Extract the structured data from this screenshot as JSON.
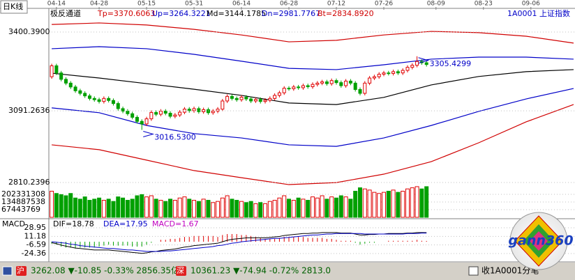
{
  "header": {
    "period": "日K线",
    "indicator": "极反通道",
    "symbol": "1A0001",
    "name": "上证指数"
  },
  "chart_data": [
    {
      "type": "candlestick",
      "xlim": [
        -0.6,
        110.3
      ],
      "xticks": [
        {
          "value": 1,
          "label": "04-14"
        },
        {
          "value": 10,
          "label": "04-28"
        },
        {
          "value": 20,
          "label": "05-15"
        },
        {
          "value": 30,
          "label": "05-31"
        },
        {
          "value": 40,
          "label": "06-14"
        },
        {
          "value": 50,
          "label": "06-28"
        },
        {
          "value": 60,
          "label": "07-12"
        },
        {
          "value": 70,
          "label": "07-26"
        },
        {
          "value": 81,
          "label": "08-09"
        },
        {
          "value": 91,
          "label": "08-23"
        },
        {
          "value": 101,
          "label": "09-06"
        }
      ],
      "ylim": [
        2793.9,
        3487.8
      ],
      "yticks": [
        {
          "value": 3400.39,
          "label": "3400.3900"
        },
        3091.2636,
        2810.2396
      ],
      "up_color": "#e00000",
      "down_color": "#00a000",
      "open": [
        3225,
        3268,
        3240,
        3215,
        3200,
        3185,
        3170,
        3160,
        3150,
        3140,
        3135,
        3128,
        3140,
        3132,
        3120,
        3100,
        3090,
        3080,
        3066,
        3050,
        3040,
        3060,
        3085,
        3078,
        3090,
        3082,
        3070,
        3075,
        3086,
        3098,
        3092,
        3100,
        3088,
        3096,
        3084,
        3090,
        3098,
        3130,
        3148,
        3140,
        3135,
        3145,
        3138,
        3130,
        3136,
        3128,
        3133,
        3140,
        3152,
        3162,
        3180,
        3178,
        3185,
        3182,
        3190,
        3186,
        3195,
        3200,
        3205,
        3198,
        3210,
        3202,
        3190,
        3208,
        3200,
        3175,
        3160,
        3200,
        3220,
        3225,
        3235,
        3240,
        3238,
        3245,
        3240,
        3250,
        3262,
        3270,
        3285,
        3280
      ],
      "high": [
        3276,
        3276,
        3248,
        3223,
        3208,
        3193,
        3178,
        3168,
        3158,
        3148,
        3143,
        3148,
        3148,
        3140,
        3128,
        3108,
        3098,
        3088,
        3074,
        3058,
        3068,
        3093,
        3093,
        3098,
        3098,
        3090,
        3083,
        3094,
        3106,
        3106,
        3108,
        3108,
        3104,
        3104,
        3098,
        3106,
        3138,
        3156,
        3156,
        3148,
        3153,
        3153,
        3146,
        3144,
        3144,
        3141,
        3148,
        3160,
        3170,
        3188,
        3188,
        3193,
        3193,
        3198,
        3198,
        3203,
        3208,
        3213,
        3213,
        3218,
        3218,
        3210,
        3216,
        3216,
        3208,
        3183,
        3208,
        3228,
        3233,
        3243,
        3248,
        3248,
        3253,
        3253,
        3258,
        3270,
        3278,
        3305.4299,
        3293,
        3288
      ],
      "low": [
        3217,
        3232,
        3207,
        3192,
        3177,
        3162,
        3152,
        3142,
        3132,
        3127,
        3120,
        3120,
        3124,
        3112,
        3092,
        3082,
        3072,
        3058,
        3042,
        3016.53,
        3032,
        3052,
        3070,
        3070,
        3074,
        3062,
        3062,
        3067,
        3078,
        3084,
        3084,
        3080,
        3080,
        3076,
        3076,
        3082,
        3090,
        3122,
        3132,
        3127,
        3127,
        3130,
        3122,
        3122,
        3120,
        3120,
        3125,
        3132,
        3144,
        3154,
        3170,
        3170,
        3174,
        3174,
        3178,
        3178,
        3187,
        3192,
        3190,
        3190,
        3194,
        3182,
        3182,
        3192,
        3167,
        3152,
        3152,
        3192,
        3212,
        3217,
        3227,
        3230,
        3230,
        3232,
        3232,
        3242,
        3254,
        3262,
        3272,
        3265
      ],
      "close": [
        3268,
        3240,
        3215,
        3200,
        3185,
        3170,
        3160,
        3150,
        3140,
        3135,
        3128,
        3140,
        3132,
        3120,
        3100,
        3090,
        3080,
        3066,
        3050,
        3040,
        3060,
        3085,
        3078,
        3090,
        3082,
        3070,
        3075,
        3086,
        3098,
        3092,
        3100,
        3088,
        3096,
        3084,
        3090,
        3098,
        3130,
        3148,
        3140,
        3135,
        3145,
        3138,
        3130,
        3136,
        3128,
        3133,
        3140,
        3152,
        3162,
        3180,
        3178,
        3185,
        3182,
        3190,
        3186,
        3195,
        3200,
        3205,
        3198,
        3210,
        3202,
        3190,
        3208,
        3200,
        3175,
        3160,
        3200,
        3220,
        3225,
        3235,
        3240,
        3238,
        3245,
        3240,
        3250,
        3262,
        3270,
        3285,
        3280,
        3273
      ],
      "channel_x": [
        0,
        10,
        20,
        30,
        40,
        50,
        60,
        70,
        80,
        90,
        100,
        110
      ],
      "series": [
        {
          "name": "Tp=3370.6063",
          "color": "#d00000",
          "values": [
            3430,
            3436,
            3428,
            3411,
            3389,
            3362,
            3368,
            3389,
            3403,
            3398,
            3384,
            3357
          ]
        },
        {
          "name": "Up=3264.3221",
          "color": "#0000c8",
          "values": [
            3335,
            3343,
            3335,
            3313,
            3286,
            3258,
            3253,
            3272,
            3294,
            3302,
            3302,
            3294
          ]
        },
        {
          "name": "Md=3144.1785",
          "color": "#000000",
          "values": [
            3239,
            3220,
            3198,
            3176,
            3152,
            3122,
            3116,
            3144,
            3193,
            3226,
            3245,
            3253
          ]
        },
        {
          "name": "Dn=2981.7767",
          "color": "#0000c8",
          "values": [
            3103,
            3084,
            3034,
            3002,
            2985,
            2958,
            2952,
            2985,
            3034,
            3089,
            3138,
            3179
          ]
        },
        {
          "name": "Bt=2834.8920",
          "color": "#d00000",
          "values": [
            2958,
            2939,
            2898,
            2857,
            2829,
            2802,
            2810,
            2843,
            2892,
            2966,
            3048,
            3116
          ]
        }
      ],
      "annotations": [
        {
          "label": "3305.4299",
          "x": 77,
          "value": 3305.4299,
          "color": "#0000c8"
        },
        {
          "label": "3016.5300",
          "x": 19,
          "value": 3016.53,
          "color": "#0000c8"
        }
      ]
    },
    {
      "type": "volume",
      "ylim": [
        0,
        269775077
      ],
      "yticks": [
        67443769,
        134887538,
        202331308
      ],
      "values": [
        230000000.0,
        210000000.0,
        200000000.0,
        190000000.0,
        210000000.0,
        170000000.0,
        160000000.0,
        180000000.0,
        150000000.0,
        160000000.0,
        170000000.0,
        150000000.0,
        160000000.0,
        140000000.0,
        180000000.0,
        170000000.0,
        150000000.0,
        160000000.0,
        190000000.0,
        200000000.0,
        180000000.0,
        190000000.0,
        160000000.0,
        150000000.0,
        140000000.0,
        160000000.0,
        150000000.0,
        170000000.0,
        180000000.0,
        160000000.0,
        150000000.0,
        140000000.0,
        160000000.0,
        150000000.0,
        130000000.0,
        140000000.0,
        170000000.0,
        190000000.0,
        160000000.0,
        150000000.0,
        140000000.0,
        130000000.0,
        140000000.0,
        120000000.0,
        130000000.0,
        120000000.0,
        140000000.0,
        150000000.0,
        170000000.0,
        190000000.0,
        160000000.0,
        150000000.0,
        170000000.0,
        160000000.0,
        150000000.0,
        180000000.0,
        170000000.0,
        190000000.0,
        160000000.0,
        180000000.0,
        170000000.0,
        190000000.0,
        180000000.0,
        160000000.0,
        230000000.0,
        260000000.0,
        250000000.0,
        240000000.0,
        220000000.0,
        210000000.0,
        220000000.0,
        230000000.0,
        240000000.0,
        220000000.0,
        230000000.0,
        250000000.0,
        260000000.0,
        270000000.0,
        250000000.0,
        270000000.0
      ]
    },
    {
      "type": "macd",
      "title": "MACD",
      "ylim": [
        -35.89,
        39.04
      ],
      "yticks": [
        28.95,
        11.18,
        -6.59,
        -24.36
      ],
      "series": [
        {
          "name": "DIF=18.78",
          "color": "#000000",
          "values": [
            -2,
            -4,
            -7,
            -9,
            -11,
            -13,
            -14,
            -15,
            -16,
            -17,
            -17,
            -17,
            -17,
            -18,
            -19,
            -20,
            -21,
            -22,
            -23,
            -24,
            -23,
            -21,
            -20,
            -18,
            -17,
            -16,
            -15,
            -13,
            -11,
            -10,
            -8,
            -7,
            -6,
            -5,
            -4,
            -3,
            0,
            3,
            5,
            6,
            7,
            8,
            8,
            8,
            8,
            8,
            9,
            10,
            11,
            13,
            14,
            15,
            16,
            17,
            17,
            18,
            18,
            19,
            19,
            19,
            19,
            18,
            18,
            18,
            16,
            14,
            14,
            15,
            15,
            16,
            16,
            17,
            17,
            17,
            17,
            18,
            18,
            19,
            19,
            18.78
          ]
        },
        {
          "name": "DEA=17.95",
          "color": "#0000c8",
          "values": [
            0,
            -1,
            -2,
            -3,
            -5,
            -6,
            -8,
            -9,
            -10,
            -11,
            -12,
            -13,
            -14,
            -14,
            -15,
            -16,
            -17,
            -17,
            -18,
            -19,
            -20,
            -20,
            -20,
            -20,
            -19,
            -19,
            -18,
            -17,
            -16,
            -15,
            -14,
            -13,
            -12,
            -11,
            -10,
            -8,
            -7,
            -5,
            -3,
            -2,
            0,
            1,
            2,
            3,
            4,
            5,
            6,
            7,
            7,
            8,
            9,
            10,
            11,
            12,
            13,
            14,
            14,
            15,
            16,
            16,
            17,
            17,
            17,
            17,
            17,
            17,
            16,
            16,
            16,
            16,
            16,
            16,
            16,
            16,
            16,
            17,
            17,
            17,
            18,
            17.95
          ]
        }
      ],
      "histogram": {
        "name": "MACD=1.67",
        "color": "#c000c0",
        "pos_color": "#e00000",
        "neg_color": "#00a000",
        "values": [
          -4,
          -6,
          -10,
          -12,
          -12,
          -14,
          -12,
          -12,
          -12,
          -12,
          -10,
          -8,
          -6,
          -8,
          -8,
          -8,
          -8,
          -10,
          -10,
          -10,
          -6,
          -2,
          0,
          4,
          4,
          6,
          6,
          8,
          10,
          10,
          12,
          12,
          12,
          12,
          12,
          10,
          14,
          16,
          16,
          16,
          14,
          14,
          12,
          10,
          8,
          6,
          6,
          6,
          8,
          10,
          10,
          10,
          10,
          10,
          8,
          8,
          8,
          8,
          6,
          6,
          4,
          2,
          2,
          2,
          -2,
          -6,
          -4,
          -2,
          -2,
          0,
          0,
          2,
          2,
          2,
          2,
          2,
          2,
          4,
          2,
          1.67
        ]
      }
    }
  ],
  "logo": "gann360",
  "status_bar": {
    "sh_badge": "沪",
    "sh": "3262.08 ▼-10.85 -0.33% 2856.35亿",
    "sz_badge": "深",
    "sz": "10361.23 ▼-74.94 -0.72% 2813.0",
    "right": "收1A0001分笔"
  }
}
